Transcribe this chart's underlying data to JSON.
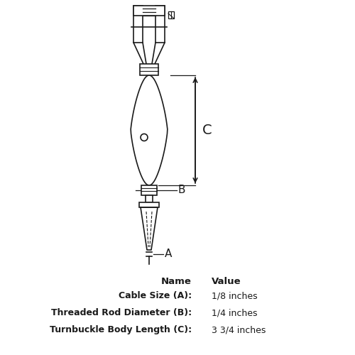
{
  "bg_color": "#ffffff",
  "line_color": "#1a1a1a",
  "fig_width": 5.0,
  "fig_height": 5.0,
  "table_header": [
    "Name",
    "Value"
  ],
  "table_rows": [
    [
      "Cable Size (A):",
      "1/8 inches"
    ],
    [
      "Threaded Rod Diameter (B):",
      "1/4 inches"
    ],
    [
      "Turnbuckle Body Length (C):",
      "3 3/4 inches"
    ]
  ],
  "label_A": "A",
  "label_B": "B",
  "label_C": "C"
}
